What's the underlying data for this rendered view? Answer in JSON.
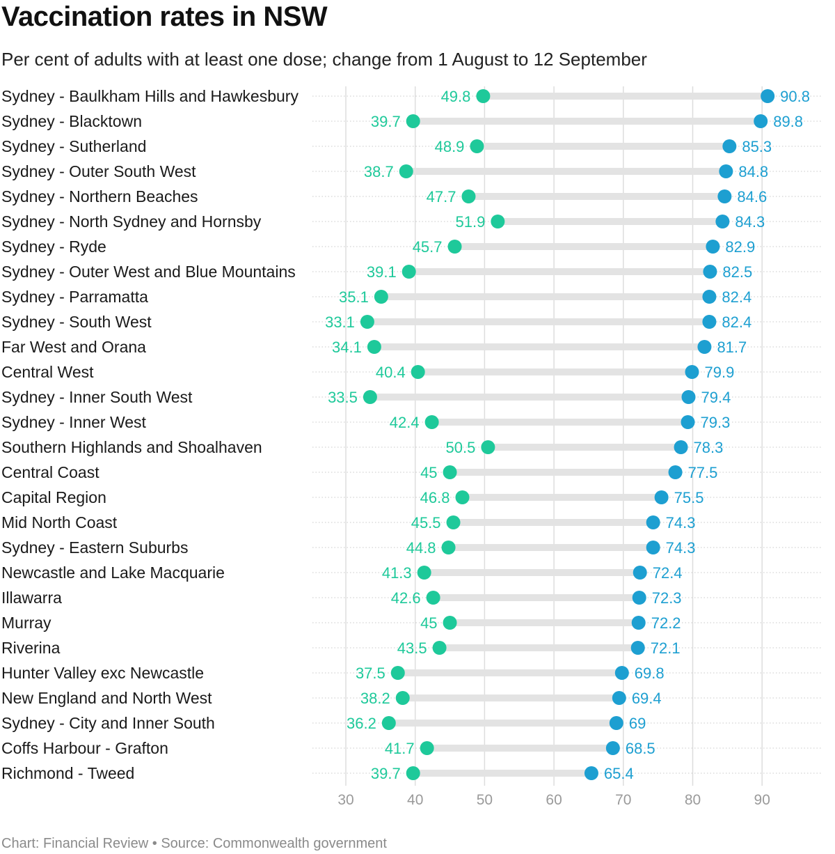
{
  "header": {
    "title": "Vaccination rates in NSW",
    "subtitle": "Per cent of adults with at least one dose; change from 1 August to 12 September"
  },
  "footer": {
    "credit": "Chart: Financial Review",
    "separator": "•",
    "source": "Source: Commonwealth government"
  },
  "colors": {
    "start": "#1ec99a",
    "end": "#1d9fd1",
    "bar": "#e3e3e3",
    "grid": "#dddddd"
  },
  "chart_data": {
    "type": "dumbbell",
    "xlim": [
      25,
      98
    ],
    "xticks": [
      30,
      40,
      50,
      60,
      70,
      80,
      90
    ],
    "grid": true,
    "series": [
      {
        "key": "start",
        "label": "1 August"
      },
      {
        "key": "end",
        "label": "12 September"
      }
    ],
    "rows": [
      {
        "label": "Sydney - Baulkham Hills and Hawkesbury",
        "start": 49.8,
        "end": 90.8
      },
      {
        "label": "Sydney - Blacktown",
        "start": 39.7,
        "end": 89.8
      },
      {
        "label": "Sydney - Sutherland",
        "start": 48.9,
        "end": 85.3
      },
      {
        "label": "Sydney - Outer South West",
        "start": 38.7,
        "end": 84.8
      },
      {
        "label": "Sydney - Northern Beaches",
        "start": 47.7,
        "end": 84.6
      },
      {
        "label": "Sydney - North Sydney and Hornsby",
        "start": 51.9,
        "end": 84.3
      },
      {
        "label": "Sydney - Ryde",
        "start": 45.7,
        "end": 82.9
      },
      {
        "label": "Sydney - Outer West and Blue Mountains",
        "start": 39.1,
        "end": 82.5
      },
      {
        "label": "Sydney - Parramatta",
        "start": 35.1,
        "end": 82.4
      },
      {
        "label": "Sydney - South West",
        "start": 33.1,
        "end": 82.4
      },
      {
        "label": "Far West and Orana",
        "start": 34.1,
        "end": 81.7
      },
      {
        "label": "Central West",
        "start": 40.4,
        "end": 79.9
      },
      {
        "label": "Sydney - Inner South West",
        "start": 33.5,
        "end": 79.4
      },
      {
        "label": "Sydney - Inner West",
        "start": 42.4,
        "end": 79.3
      },
      {
        "label": "Southern Highlands and Shoalhaven",
        "start": 50.5,
        "end": 78.3
      },
      {
        "label": "Central Coast",
        "start": 45,
        "end": 77.5
      },
      {
        "label": "Capital Region",
        "start": 46.8,
        "end": 75.5
      },
      {
        "label": "Mid North Coast",
        "start": 45.5,
        "end": 74.3
      },
      {
        "label": "Sydney - Eastern Suburbs",
        "start": 44.8,
        "end": 74.3
      },
      {
        "label": "Newcastle and Lake Macquarie",
        "start": 41.3,
        "end": 72.4
      },
      {
        "label": "Illawarra",
        "start": 42.6,
        "end": 72.3
      },
      {
        "label": "Murray",
        "start": 45,
        "end": 72.2
      },
      {
        "label": "Riverina",
        "start": 43.5,
        "end": 72.1
      },
      {
        "label": "Hunter Valley exc Newcastle",
        "start": 37.5,
        "end": 69.8
      },
      {
        "label": "New England and North West",
        "start": 38.2,
        "end": 69.4
      },
      {
        "label": "Sydney - City and Inner South",
        "start": 36.2,
        "end": 69
      },
      {
        "label": "Coffs Harbour - Grafton",
        "start": 41.7,
        "end": 68.5
      },
      {
        "label": "Richmond - Tweed",
        "start": 39.7,
        "end": 65.4
      }
    ]
  }
}
